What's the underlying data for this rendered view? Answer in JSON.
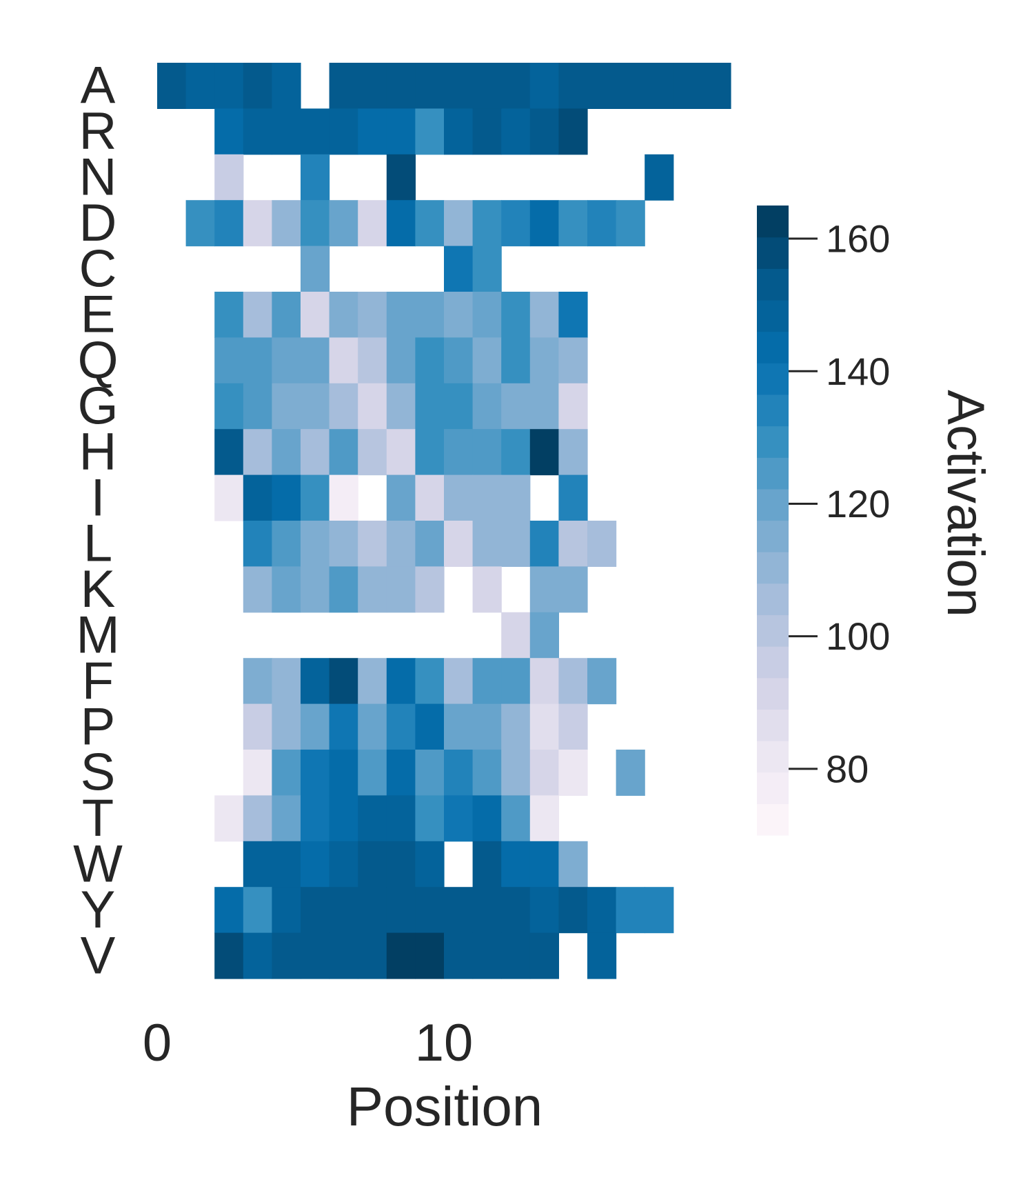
{
  "chart_data": {
    "type": "heatmap",
    "title": "",
    "xlabel": "Position",
    "ylabel": "",
    "rows": [
      "A",
      "R",
      "N",
      "D",
      "C",
      "E",
      "Q",
      "G",
      "H",
      "I",
      "L",
      "K",
      "M",
      "F",
      "P",
      "S",
      "T",
      "W",
      "Y",
      "V"
    ],
    "x_positions": [
      0,
      1,
      2,
      3,
      4,
      5,
      6,
      7,
      8,
      9,
      10,
      11,
      12,
      13,
      14,
      15,
      16,
      17,
      18,
      19
    ],
    "x_ticks": [
      0,
      10
    ],
    "x_tick_labels": [
      "0",
      "10"
    ],
    "values": [
      [
        153,
        150,
        150,
        153,
        149,
        null,
        151,
        153,
        153,
        153,
        153,
        153,
        153,
        149,
        153,
        153,
        153,
        153,
        153,
        153
      ],
      [
        null,
        null,
        143,
        147,
        147,
        147,
        147,
        143,
        143,
        131,
        149,
        152,
        148,
        153,
        158,
        null,
        null,
        null,
        null,
        null
      ],
      [
        null,
        null,
        94,
        null,
        null,
        134,
        null,
        null,
        159,
        null,
        null,
        null,
        null,
        null,
        null,
        null,
        null,
        148,
        null,
        null
      ],
      [
        null,
        131,
        135,
        92,
        112,
        130,
        120,
        93,
        142,
        130,
        112,
        130,
        134,
        145,
        130,
        134,
        130,
        null,
        null,
        null
      ],
      [
        null,
        null,
        null,
        null,
        null,
        120,
        null,
        null,
        null,
        null,
        137,
        130,
        null,
        null,
        null,
        null,
        null,
        null,
        null,
        null
      ],
      [
        null,
        null,
        130,
        104,
        124,
        90,
        115,
        111,
        119,
        122,
        117,
        122,
        130,
        110,
        138,
        null,
        null,
        null,
        null,
        null
      ],
      [
        null,
        null,
        126,
        126,
        122,
        122,
        90,
        103,
        119,
        130,
        126,
        116,
        130,
        117,
        110,
        null,
        null,
        null,
        null,
        null
      ],
      [
        null,
        null,
        130,
        126,
        115,
        115,
        106,
        90,
        109,
        127,
        127,
        121,
        117,
        117,
        91,
        null,
        null,
        null,
        null,
        null
      ],
      [
        null,
        null,
        155,
        106,
        118,
        104,
        125,
        102,
        91,
        130,
        126,
        126,
        130,
        162,
        112,
        null,
        null,
        null,
        null,
        null
      ],
      [
        null,
        null,
        84,
        147,
        143,
        130,
        78,
        null,
        120,
        91,
        112,
        112,
        111,
        null,
        136,
        null,
        null,
        null,
        null,
        null
      ],
      [
        null,
        null,
        null,
        136,
        125,
        115,
        111,
        102,
        109,
        120,
        91,
        112,
        112,
        136,
        101,
        107,
        null,
        null,
        null,
        null
      ],
      [
        null,
        null,
        null,
        111,
        122,
        116,
        126,
        110,
        110,
        100,
        null,
        90,
        null,
        114,
        114,
        null,
        null,
        null,
        null,
        null
      ],
      [
        null,
        null,
        null,
        null,
        null,
        null,
        null,
        null,
        null,
        null,
        null,
        null,
        90,
        118,
        null,
        null,
        null,
        null,
        null,
        null
      ],
      [
        null,
        null,
        null,
        117,
        108,
        148,
        157,
        109,
        145,
        130,
        107,
        126,
        126,
        90,
        104,
        118,
        null,
        null,
        null,
        null
      ],
      [
        null,
        null,
        null,
        94,
        110,
        120,
        138,
        120,
        136,
        142,
        122,
        122,
        109,
        85,
        94,
        null,
        null,
        null,
        null,
        null
      ],
      [
        null,
        null,
        null,
        80,
        126,
        138,
        143,
        126,
        145,
        123,
        136,
        124,
        112,
        90,
        80,
        null,
        120,
        null,
        null,
        null
      ],
      [
        null,
        null,
        84,
        104,
        120,
        137,
        142,
        146,
        150,
        130,
        137,
        142,
        125,
        80,
        null,
        null,
        null,
        null,
        null,
        null
      ],
      [
        null,
        null,
        null,
        147,
        147,
        143,
        149,
        151,
        153,
        146,
        null,
        152,
        143,
        143,
        117,
        null,
        null,
        null,
        null,
        null
      ],
      [
        null,
        null,
        143,
        131,
        149,
        153,
        153,
        153,
        155,
        155,
        153,
        155,
        155,
        149,
        152,
        149,
        133,
        133,
        null,
        null
      ],
      [
        null,
        null,
        160,
        148,
        155,
        155,
        152,
        152,
        161,
        161,
        155,
        155,
        155,
        155,
        null,
        148,
        null,
        null,
        null,
        null
      ]
    ],
    "colorbar": {
      "label": "Activation",
      "vmin": 70,
      "vmax": 165,
      "ticks": [
        80,
        100,
        120,
        140,
        160
      ],
      "tick_labels": [
        "80",
        "100",
        "120",
        "140",
        "160"
      ],
      "steps": 20
    },
    "colormap": "PuBu",
    "colors": [
      "#fff7fb",
      "#ece7f2",
      "#d0d1e6",
      "#a6bddb",
      "#74a9cf",
      "#3690c0",
      "#0570b0",
      "#045a8d",
      "#023858"
    ],
    "grid": false
  }
}
